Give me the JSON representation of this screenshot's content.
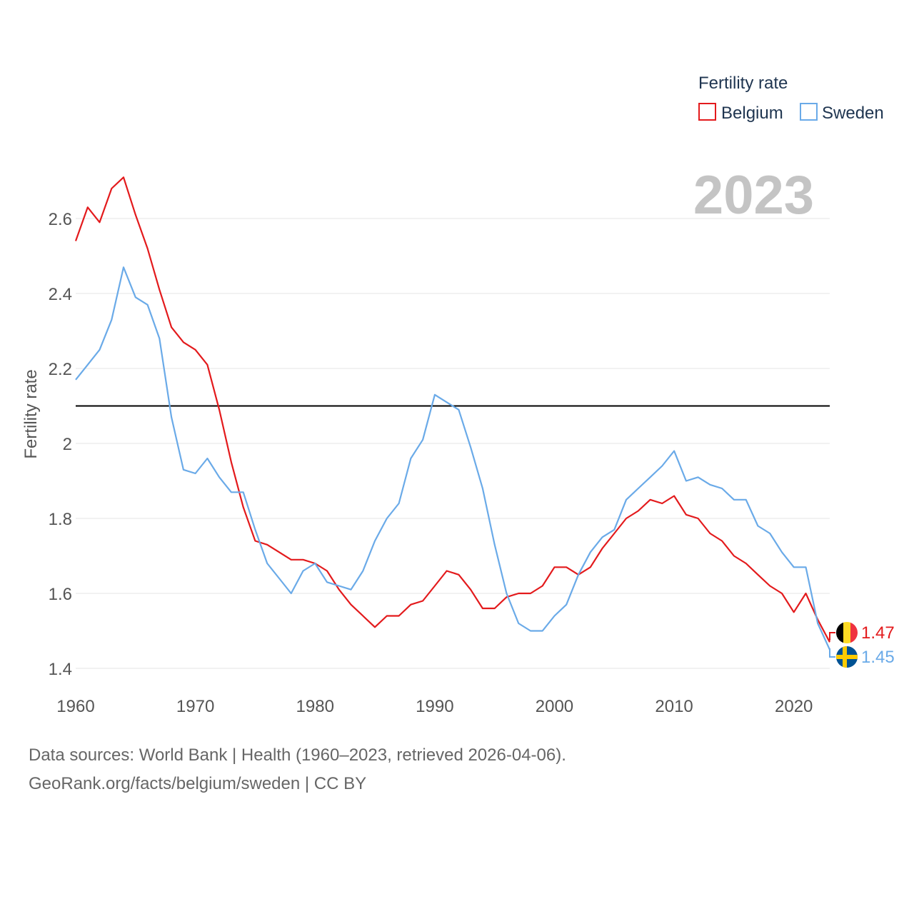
{
  "chart_data": {
    "type": "line",
    "title": "",
    "xlabel": "",
    "ylabel": "Fertility rate",
    "xlim": [
      1960,
      2023
    ],
    "ylim": [
      1.4,
      2.6
    ],
    "yticks": [
      1.4,
      1.6,
      1.8,
      2,
      2.2,
      2.4,
      2.6
    ],
    "ytick_labels": [
      "1.4",
      "1.6",
      "1.8",
      "2",
      "2.2",
      "2.4",
      "2.6"
    ],
    "xticks": [
      1960,
      1970,
      1980,
      1990,
      2000,
      2010,
      2020
    ],
    "xtick_labels": [
      "1960",
      "1970",
      "1980",
      "1990",
      "2000",
      "2010",
      "2020"
    ],
    "reference_line": 2.1,
    "grid": true,
    "legend": {
      "title": "Fertility rate",
      "position": "top-right"
    },
    "year_label": "2023",
    "x": [
      1960,
      1961,
      1962,
      1963,
      1964,
      1965,
      1966,
      1967,
      1968,
      1969,
      1970,
      1971,
      1972,
      1973,
      1974,
      1975,
      1976,
      1977,
      1978,
      1979,
      1980,
      1981,
      1982,
      1983,
      1984,
      1985,
      1986,
      1987,
      1988,
      1989,
      1990,
      1991,
      1992,
      1993,
      1994,
      1995,
      1996,
      1997,
      1998,
      1999,
      2000,
      2001,
      2002,
      2003,
      2004,
      2005,
      2006,
      2007,
      2008,
      2009,
      2010,
      2011,
      2012,
      2013,
      2014,
      2015,
      2016,
      2017,
      2018,
      2019,
      2020,
      2021,
      2022,
      2023
    ],
    "series": [
      {
        "name": "Belgium",
        "color": "#e31a1c",
        "end_label": "1.47",
        "flag": "belgium-flag",
        "values": [
          2.54,
          2.63,
          2.59,
          2.68,
          2.71,
          2.61,
          2.52,
          2.41,
          2.31,
          2.27,
          2.25,
          2.21,
          2.09,
          1.95,
          1.83,
          1.74,
          1.73,
          1.71,
          1.69,
          1.69,
          1.68,
          1.66,
          1.61,
          1.57,
          1.54,
          1.51,
          1.54,
          1.54,
          1.57,
          1.58,
          1.62,
          1.66,
          1.65,
          1.61,
          1.56,
          1.56,
          1.59,
          1.6,
          1.6,
          1.62,
          1.67,
          1.67,
          1.65,
          1.67,
          1.72,
          1.76,
          1.8,
          1.82,
          1.85,
          1.84,
          1.86,
          1.81,
          1.8,
          1.76,
          1.74,
          1.7,
          1.68,
          1.65,
          1.62,
          1.6,
          1.55,
          1.6,
          1.53,
          1.47
        ]
      },
      {
        "name": "Sweden",
        "color": "#6aaae8",
        "end_label": "1.45",
        "flag": "sweden-flag",
        "values": [
          2.17,
          2.21,
          2.25,
          2.33,
          2.47,
          2.39,
          2.37,
          2.28,
          2.07,
          1.93,
          1.92,
          1.96,
          1.91,
          1.87,
          1.87,
          1.77,
          1.68,
          1.64,
          1.6,
          1.66,
          1.68,
          1.63,
          1.62,
          1.61,
          1.66,
          1.74,
          1.8,
          1.84,
          1.96,
          2.01,
          2.13,
          2.11,
          2.09,
          1.99,
          1.88,
          1.73,
          1.6,
          1.52,
          1.5,
          1.5,
          1.54,
          1.57,
          1.65,
          1.71,
          1.75,
          1.77,
          1.85,
          1.88,
          1.91,
          1.94,
          1.98,
          1.9,
          1.91,
          1.89,
          1.88,
          1.85,
          1.85,
          1.78,
          1.76,
          1.71,
          1.67,
          1.67,
          1.52,
          1.45
        ]
      }
    ]
  },
  "footer": {
    "sources": "Data sources: World Bank | Health (1960–2023, retrieved 2026-04-06).",
    "link": "GeoRank.org/facts/belgium/sweden | CC BY"
  }
}
